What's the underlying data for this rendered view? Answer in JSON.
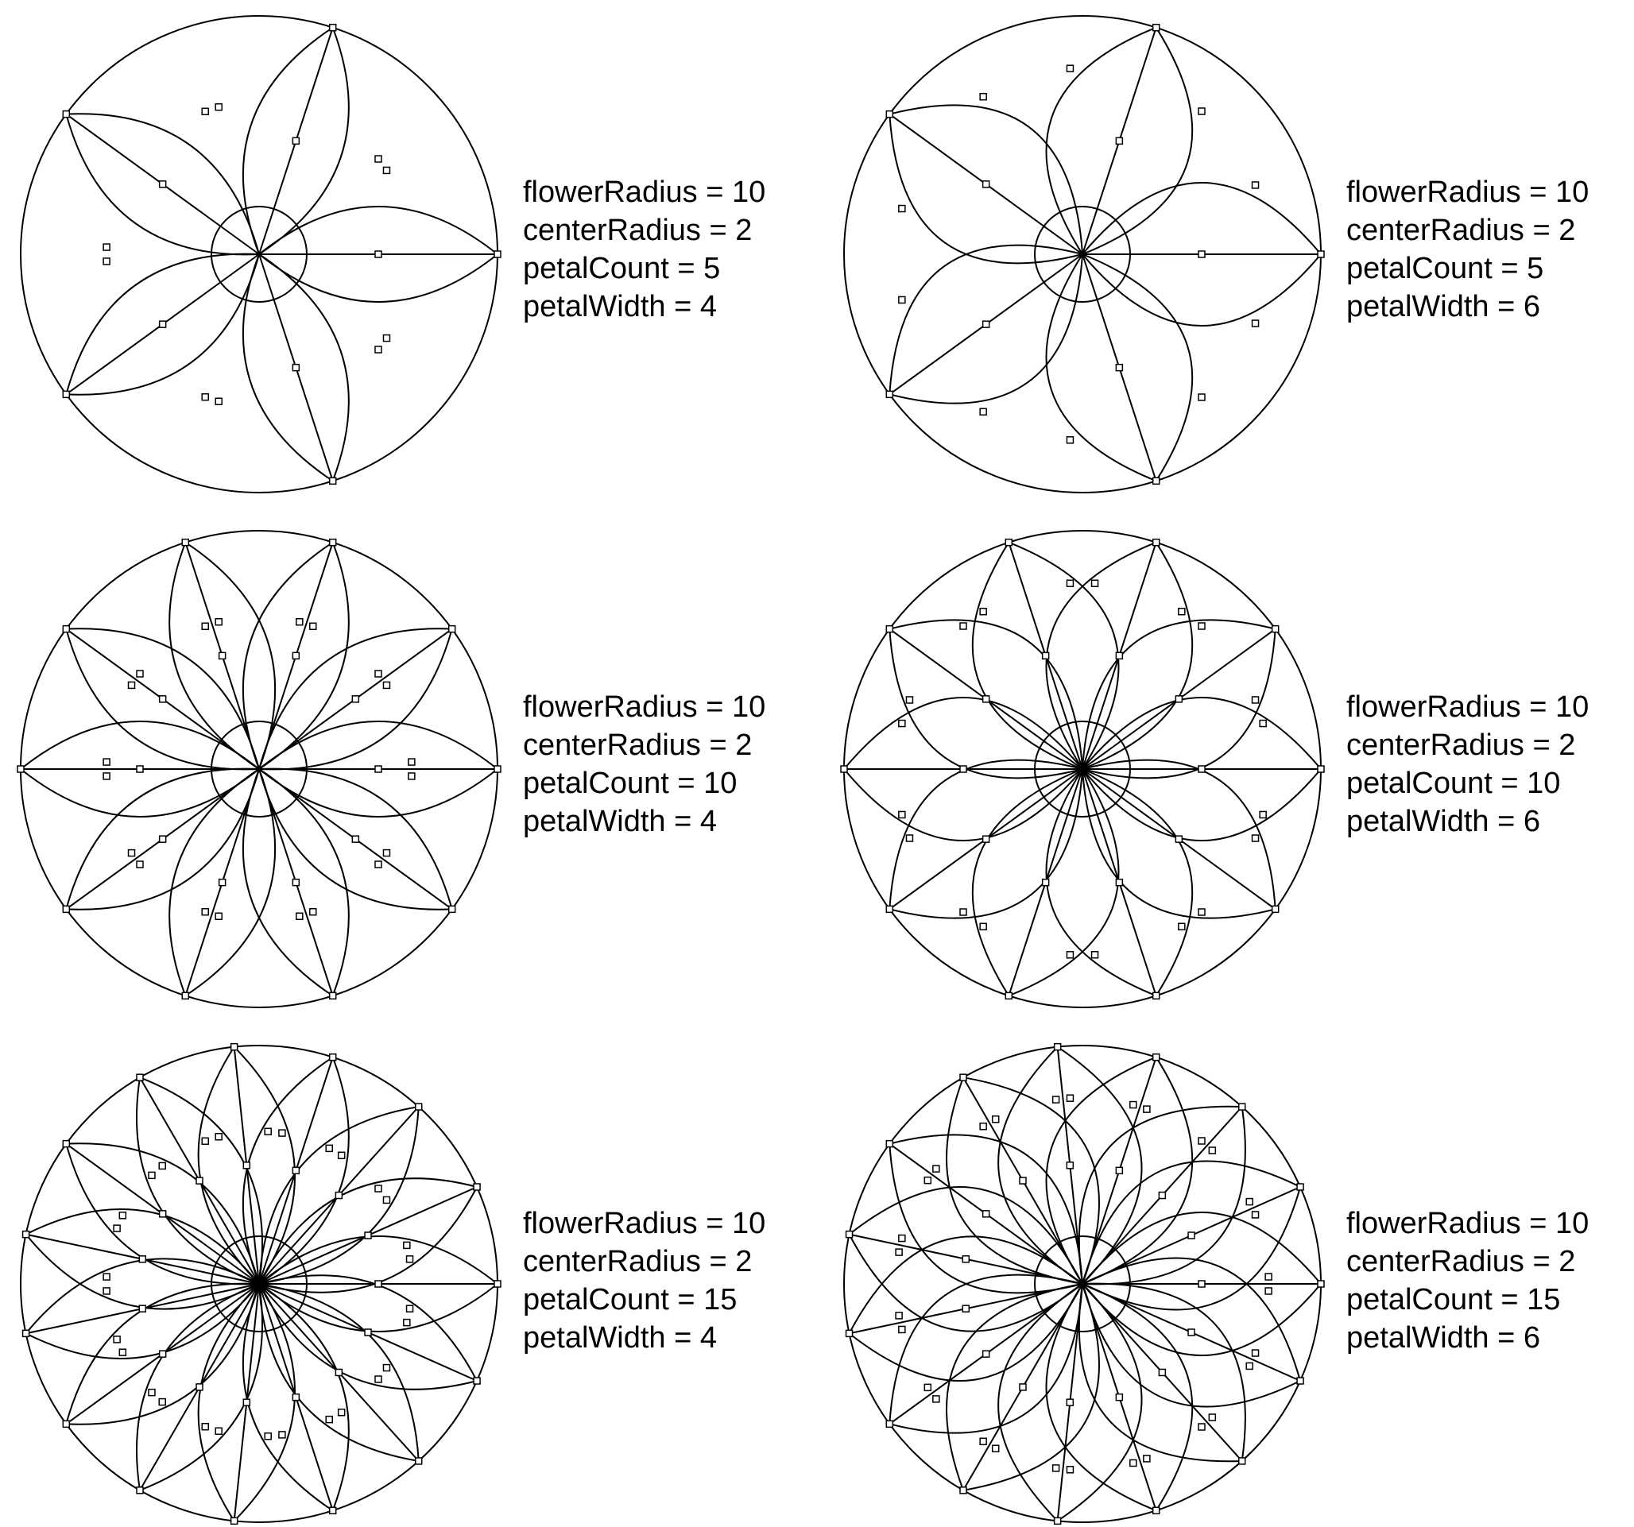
{
  "panels": [
    {
      "id": "panel-1",
      "params": {
        "flowerRadius": 10,
        "centerRadius": 2,
        "petalCount": 5,
        "petalWidth": 4
      },
      "lines": [
        "flowerRadius = 10",
        "centerRadius = 2",
        "petalCount = 5",
        "petalWidth = 4"
      ]
    },
    {
      "id": "panel-2",
      "params": {
        "flowerRadius": 10,
        "centerRadius": 2,
        "petalCount": 5,
        "petalWidth": 6
      },
      "lines": [
        "flowerRadius = 10",
        "centerRadius = 2",
        "petalCount = 5",
        "petalWidth = 6"
      ]
    },
    {
      "id": "panel-3",
      "params": {
        "flowerRadius": 10,
        "centerRadius": 2,
        "petalCount": 10,
        "petalWidth": 4
      },
      "lines": [
        "flowerRadius = 10",
        "centerRadius = 2",
        "petalCount = 10",
        "petalWidth = 4"
      ]
    },
    {
      "id": "panel-4",
      "params": {
        "flowerRadius": 10,
        "centerRadius": 2,
        "petalCount": 10,
        "petalWidth": 6
      },
      "lines": [
        "flowerRadius = 10",
        "centerRadius = 2",
        "petalCount = 10",
        "petalWidth = 6"
      ]
    },
    {
      "id": "panel-5",
      "params": {
        "flowerRadius": 10,
        "centerRadius": 2,
        "petalCount": 15,
        "petalWidth": 4
      },
      "lines": [
        "flowerRadius = 10",
        "centerRadius = 2",
        "petalCount = 15",
        "petalWidth = 4"
      ]
    },
    {
      "id": "panel-6",
      "params": {
        "flowerRadius": 10,
        "centerRadius": 2,
        "petalCount": 15,
        "petalWidth": 6
      },
      "lines": [
        "flowerRadius = 10",
        "centerRadius = 2",
        "petalCount = 15",
        "petalWidth = 6"
      ]
    }
  ],
  "colors": {
    "stroke": "#000000",
    "background": "#ffffff"
  }
}
